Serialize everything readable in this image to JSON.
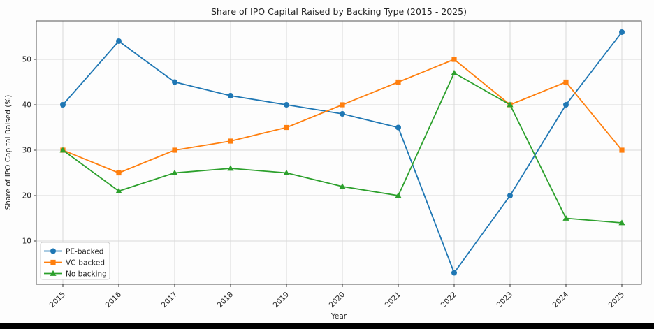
{
  "chart_data": {
    "type": "line",
    "title": "Share of IPO Capital Raised by Backing Type (2015 - 2025)",
    "xlabel": "Year",
    "ylabel": "Share of IPO Capital Raised (%)",
    "x": [
      2015,
      2016,
      2017,
      2018,
      2019,
      2020,
      2021,
      2022,
      2023,
      2024,
      2025
    ],
    "series": [
      {
        "name": "PE-backed",
        "color": "#1f77b4",
        "marker": "circle",
        "values": [
          40,
          54,
          45,
          42,
          40,
          38,
          35,
          3,
          20,
          40,
          56
        ]
      },
      {
        "name": "VC-backed",
        "color": "#ff7f0e",
        "marker": "square",
        "values": [
          30,
          25,
          30,
          32,
          35,
          40,
          45,
          50,
          40,
          45,
          30
        ]
      },
      {
        "name": "No backing",
        "color": "#2ca02c",
        "marker": "triangle",
        "values": [
          30,
          21,
          25,
          26,
          25,
          22,
          20,
          47,
          40,
          15,
          14
        ]
      }
    ],
    "yticks": [
      10,
      20,
      30,
      40,
      50
    ],
    "ylim": [
      0.35,
      58.65
    ],
    "grid": true,
    "legend_position": "lower left",
    "grid_color": "#d9d9d9",
    "spine_color": "#555555",
    "text_color": "#262626",
    "legend_border_color": "#cccccc",
    "legend_fill": "#ffffff"
  }
}
